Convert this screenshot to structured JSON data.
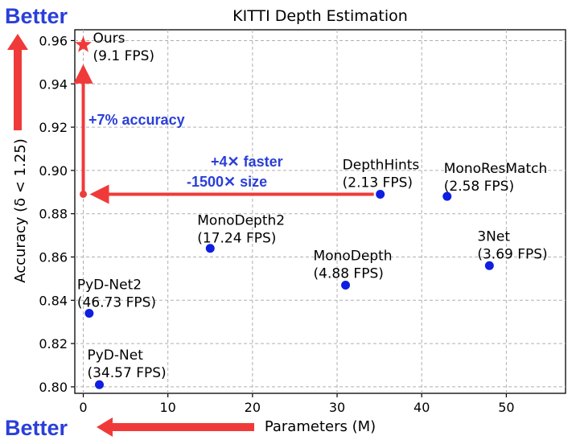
{
  "chart_data": {
    "type": "scatter",
    "title": "KITTI Depth Estimation",
    "xlabel": "Parameters (M)",
    "ylabel": "Accuracy (δ < 1.25)",
    "xlim": [
      -1,
      57
    ],
    "ylim": [
      0.797,
      0.965
    ],
    "xticks": [
      0,
      10,
      20,
      30,
      40,
      50
    ],
    "yticks": [
      0.8,
      0.82,
      0.84,
      0.86,
      0.88,
      0.9,
      0.92,
      0.94,
      0.96
    ],
    "grid": true,
    "points": [
      {
        "id": "ours",
        "name": "Ours",
        "fps": "(9.1 FPS)",
        "x": 0.0,
        "y": 0.958,
        "marker": "star",
        "color": "#f03a3a"
      },
      {
        "id": "ours-start",
        "name": "",
        "fps": "",
        "x": 0.0,
        "y": 0.889,
        "marker": "dot-small",
        "color": "#e8403a"
      },
      {
        "id": "depthhints",
        "name": "DepthHints",
        "fps": "(2.13 FPS)",
        "x": 35.1,
        "y": 0.889,
        "marker": "circle",
        "color": "#0f1ee0"
      },
      {
        "id": "monoresmatch",
        "name": "MonoResMatch",
        "fps": "(2.58 FPS)",
        "x": 43.0,
        "y": 0.888,
        "marker": "circle",
        "color": "#0f1ee0"
      },
      {
        "id": "monodepth2",
        "name": "MonoDepth2",
        "fps": "(17.24 FPS)",
        "x": 15.0,
        "y": 0.864,
        "marker": "circle",
        "color": "#0f1ee0"
      },
      {
        "id": "monodepth",
        "name": "MonoDepth",
        "fps": "(4.88 FPS)",
        "x": 31.0,
        "y": 0.847,
        "marker": "circle",
        "color": "#0f1ee0"
      },
      {
        "id": "3net",
        "name": "3Net",
        "fps": "(3.69 FPS)",
        "x": 48.0,
        "y": 0.856,
        "marker": "circle",
        "color": "#0f1ee0"
      },
      {
        "id": "pydnet2",
        "name": "PyD-Net2",
        "fps": "(46.73 FPS)",
        "x": 0.7,
        "y": 0.834,
        "marker": "circle",
        "color": "#0f1ee0"
      },
      {
        "id": "pydnet",
        "name": "PyD-Net",
        "fps": "(34.57 FPS)",
        "x": 1.9,
        "y": 0.801,
        "marker": "circle",
        "color": "#0f1ee0"
      }
    ],
    "annotations": {
      "accuracy_gain": "+7% accuracy",
      "speed_gain": "+4✕ faster",
      "size_gain": "-1500✕ size",
      "better_top": "Better",
      "better_bottom": "Better"
    },
    "colors": {
      "arrow": "#f03a3a",
      "annotation_text": "#2a3fd9",
      "point": "#0f1ee0",
      "grid": "#b0b0b0"
    }
  }
}
